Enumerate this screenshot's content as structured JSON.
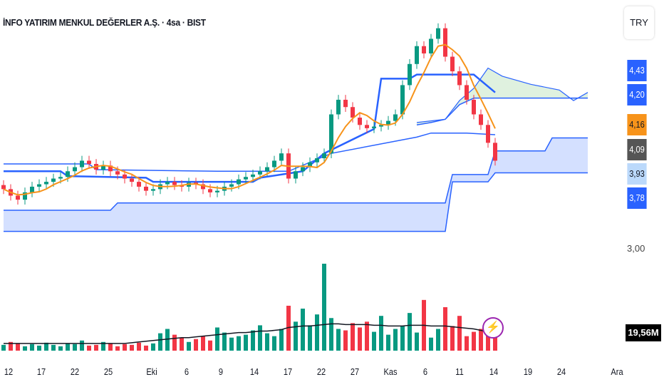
{
  "header": {
    "title": "İNFO YATIRIM MENKUL DEĞERLER A.Ş. · 4sa · BIST"
  },
  "currency_button": "TRY",
  "price_labels": [
    {
      "text": "4,43",
      "bg": "#2962ff",
      "fg": "#ffffff"
    },
    {
      "text": "4,20",
      "bg": "#2962ff",
      "fg": "#ffffff"
    },
    {
      "text": "4,16",
      "bg": "#f7931a",
      "fg": "#131722"
    },
    {
      "text": "4,09",
      "bg": "#555555",
      "fg": "#ffffff"
    },
    {
      "text": "3,93",
      "bg": "#bbd9fb",
      "fg": "#131722"
    },
    {
      "text": "3,78",
      "bg": "#2962ff",
      "fg": "#ffffff"
    }
  ],
  "axis_price_tick": "3,00",
  "volume_label": "19,56M",
  "icons": {
    "lightning": "lightning-icon"
  },
  "chart_data": {
    "type": "candlestick",
    "title": "İNFO YATIRIM MENKUL DEĞERLER A.Ş. · 4sa · BIST",
    "x_tick_labels": [
      "12",
      "17",
      "22",
      "25",
      "Eki",
      "6",
      "9",
      "14",
      "17",
      "22",
      "27",
      "Kas",
      "6",
      "11",
      "14",
      "19",
      "24",
      "Ara"
    ],
    "closes": [
      3.76,
      3.68,
      3.63,
      3.72,
      3.79,
      3.82,
      3.85,
      3.89,
      3.91,
      3.98,
      4.03,
      4.11,
      4.07,
      4.0,
      4.05,
      3.98,
      3.94,
      3.89,
      3.85,
      3.79,
      3.74,
      3.76,
      3.82,
      3.85,
      3.81,
      3.79,
      3.84,
      3.82,
      3.76,
      3.72,
      3.74,
      3.79,
      3.82,
      3.88,
      3.91,
      3.94,
      3.98,
      4.03,
      4.11,
      4.2,
      3.89,
      3.98,
      4.03,
      4.09,
      4.14,
      4.2,
      4.68,
      4.86,
      4.77,
      4.64,
      4.55,
      4.51,
      4.53,
      4.55,
      4.6,
      4.68,
      5.04,
      5.3,
      5.52,
      5.43,
      5.61,
      5.74,
      5.39,
      5.21,
      5.04,
      4.86,
      4.68,
      4.55,
      4.33,
      4.11
    ],
    "volumes_m": [
      8,
      12,
      10,
      6,
      9,
      7,
      11,
      8,
      6,
      10,
      9,
      14,
      7,
      8,
      12,
      10,
      6,
      9,
      8,
      11,
      7,
      10,
      24,
      30,
      22,
      18,
      12,
      16,
      20,
      14,
      32,
      25,
      18,
      20,
      22,
      28,
      35,
      24,
      20,
      30,
      62,
      40,
      58,
      35,
      50,
      120,
      45,
      30,
      28,
      38,
      32,
      40,
      26,
      48,
      22,
      30,
      34,
      52,
      25,
      70,
      18,
      30,
      60,
      34,
      48,
      20,
      26,
      30,
      22,
      19.56
    ],
    "volume_ma_m": [
      10,
      10,
      10,
      10,
      10,
      10,
      10,
      10,
      10,
      10,
      10,
      10,
      10,
      10,
      10,
      10,
      10,
      10,
      11,
      12,
      13,
      14,
      15,
      16,
      17,
      18,
      18,
      19,
      20,
      21,
      22,
      23,
      24,
      25,
      25,
      26,
      27,
      27,
      28,
      29,
      32,
      33,
      34,
      34,
      35,
      36,
      37,
      37,
      36,
      36,
      36,
      36,
      35,
      35,
      34,
      34,
      34,
      35,
      35,
      35,
      34,
      34,
      34,
      33,
      32,
      31,
      30,
      28,
      26,
      25
    ],
    "kijun": [
      [
        0,
        3.98
      ],
      [
        8,
        3.98
      ],
      [
        9,
        3.92
      ],
      [
        20,
        3.9
      ],
      [
        21,
        3.85
      ],
      [
        35,
        3.85
      ],
      [
        36,
        3.9
      ],
      [
        42,
        3.98
      ],
      [
        45,
        4.2
      ],
      [
        52,
        4.5
      ],
      [
        53,
        5.12
      ],
      [
        57,
        5.12
      ],
      [
        58,
        5.17
      ],
      [
        66,
        5.17
      ],
      [
        69,
        4.95
      ]
    ],
    "tenkan_upper": [
      [
        0,
        4.07
      ],
      [
        12,
        4.07
      ],
      [
        13,
        4.0
      ],
      [
        30,
        3.98
      ],
      [
        40,
        3.98
      ],
      [
        46,
        4.2
      ],
      [
        58,
        4.4
      ],
      [
        60,
        4.45
      ],
      [
        65,
        4.45
      ],
      [
        69,
        4.43
      ]
    ],
    "cloud_upper": [
      [
        58,
        4.58
      ],
      [
        60,
        4.6
      ],
      [
        62,
        4.62
      ],
      [
        64,
        4.85
      ],
      [
        66,
        5.0
      ],
      [
        68,
        5.25
      ],
      [
        70,
        5.15
      ],
      [
        74,
        5.05
      ],
      [
        78,
        4.98
      ],
      [
        80,
        4.85
      ],
      [
        82,
        4.95
      ]
    ],
    "cloud_lower": [
      [
        58,
        4.55
      ],
      [
        60,
        4.58
      ],
      [
        62,
        4.62
      ],
      [
        64,
        4.8
      ],
      [
        66,
        4.88
      ],
      [
        68,
        4.88
      ],
      [
        82,
        4.88
      ]
    ],
    "lower_band_top": [
      [
        0,
        3.5
      ],
      [
        15,
        3.5
      ],
      [
        16,
        3.59
      ],
      [
        62,
        3.59
      ],
      [
        63,
        3.94
      ],
      [
        68,
        3.94
      ],
      [
        69,
        4.23
      ],
      [
        76,
        4.23
      ],
      [
        77,
        4.39
      ],
      [
        82,
        4.39
      ]
    ],
    "lower_band_bottom": [
      [
        0,
        3.24
      ],
      [
        62,
        3.24
      ],
      [
        63,
        3.85
      ],
      [
        68,
        3.85
      ],
      [
        69,
        3.96
      ],
      [
        82,
        3.96
      ]
    ],
    "ma_period": 5,
    "ylim_price": [
      3.0,
      6.0
    ],
    "ylim_volume_m": [
      0,
      120
    ]
  }
}
